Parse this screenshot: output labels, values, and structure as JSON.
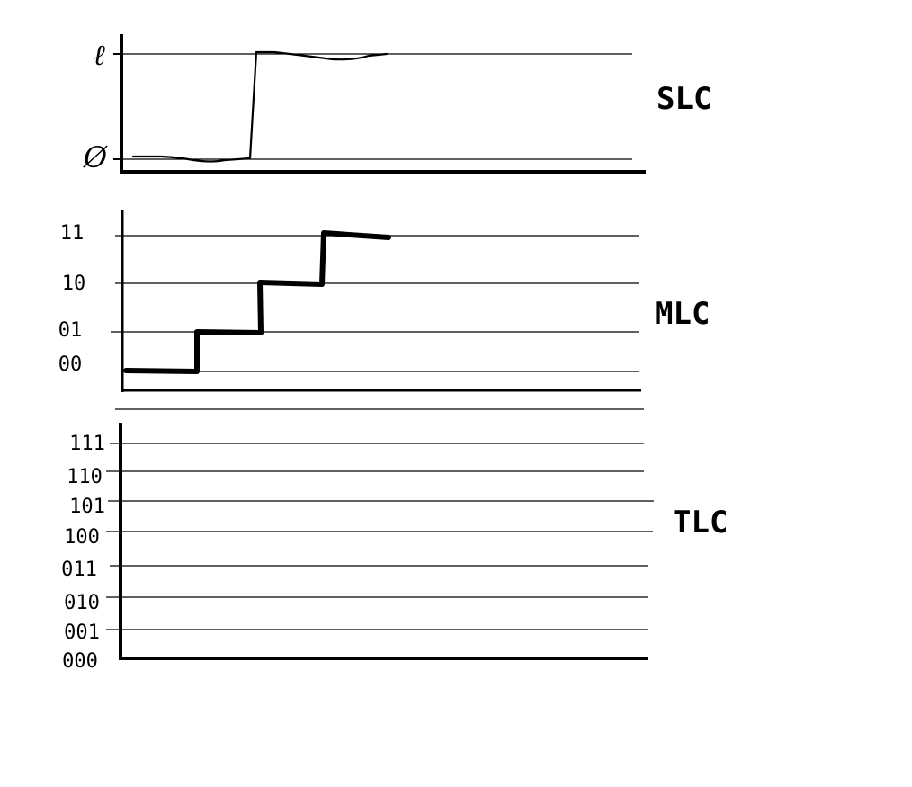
{
  "panels": {
    "slc": {
      "title": "SLC",
      "levels": [
        "ℓ",
        "Ø"
      ]
    },
    "mlc": {
      "title": "MLC",
      "levels": [
        "11",
        "10",
        "01",
        "00"
      ]
    },
    "tlc": {
      "title": "TLC",
      "levels": [
        "111",
        "110",
        "101",
        "100",
        "011",
        "010",
        "001",
        "000"
      ]
    }
  },
  "colors": {
    "ink": "#000000",
    "background": "#ffffff"
  }
}
